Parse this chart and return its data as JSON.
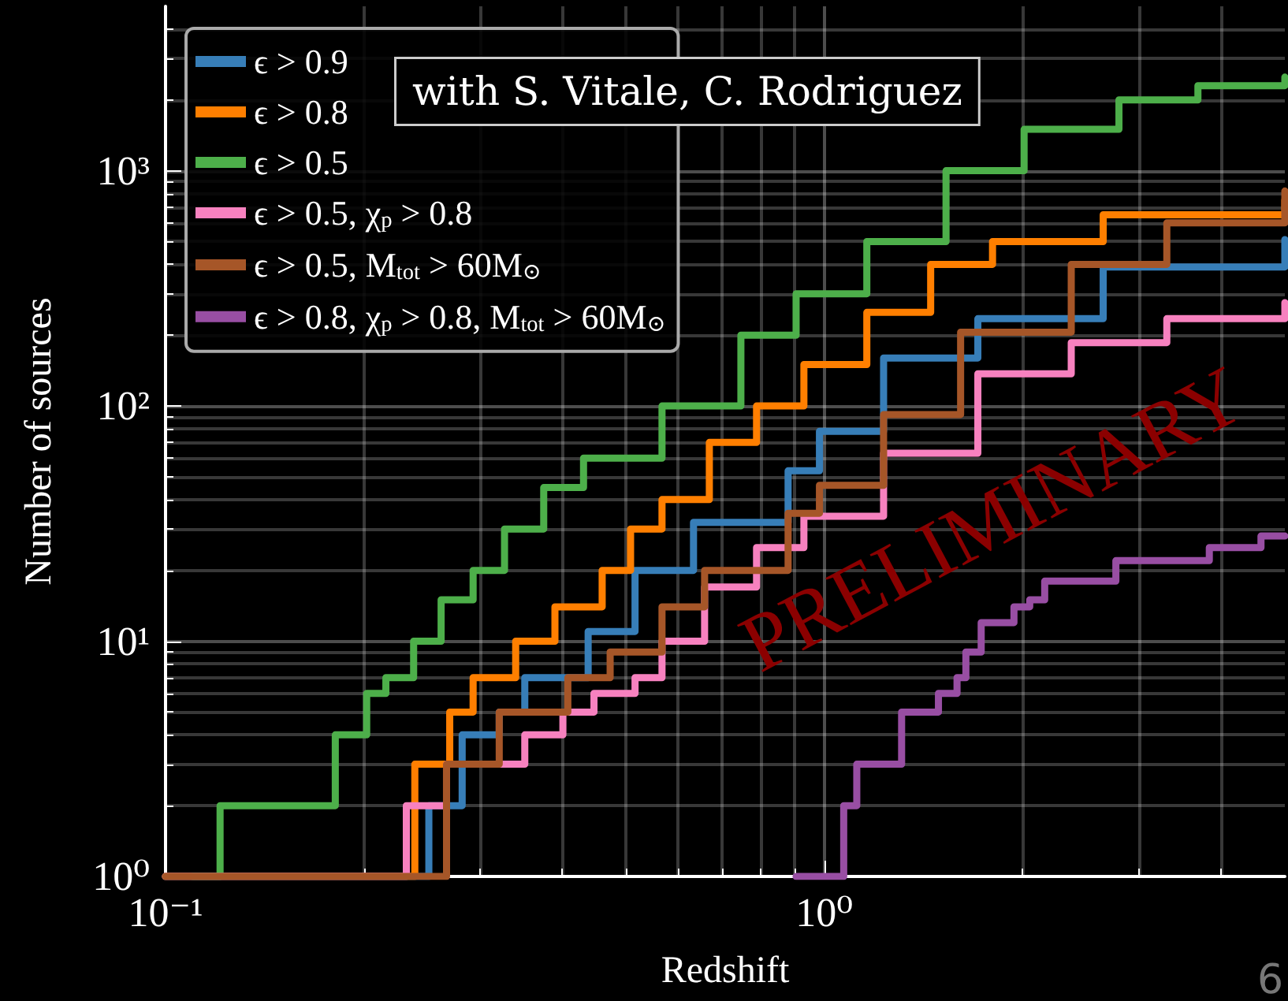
{
  "chart_data": {
    "type": "step",
    "xlabel": "Redshift",
    "ylabel": "Number of sources",
    "annotations": [
      "with S. Vitale, C. Rodriguez",
      "PRELIMINARY",
      "6"
    ],
    "log": "xy",
    "grid": true,
    "legend": "top left",
    "line_style": "solid",
    "marker": "none",
    "xlim": [
      0.1,
      5
    ],
    "xticks": [
      {
        "value": 0.1,
        "label": "10⁻¹"
      },
      {
        "value": 1,
        "label": "10⁰"
      }
    ],
    "ylim": [
      1,
      5000
    ],
    "yticks": [
      {
        "value": 1,
        "label": "10⁰"
      },
      {
        "value": 10,
        "label": "10¹"
      },
      {
        "value": 100,
        "label": "10²"
      },
      {
        "value": 1000,
        "label": "10³"
      }
    ],
    "series": [
      {
        "name": "ϵ > 0.9",
        "color": "#377eb8",
        "x": [
          0.1,
          0.251,
          0.282,
          0.321,
          0.351,
          0.438,
          0.516,
          0.633,
          0.881,
          0.983,
          1.23,
          1.71,
          2.65,
          5.0
        ],
        "values": [
          1,
          2,
          4,
          5,
          7,
          11,
          20,
          32,
          53,
          78,
          160,
          235,
          390,
          510
        ]
      },
      {
        "name": "ϵ > 0.8",
        "color": "#ff7f00",
        "x": [
          0.1,
          0.239,
          0.27,
          0.293,
          0.34,
          0.39,
          0.46,
          0.508,
          0.567,
          0.669,
          0.789,
          0.931,
          1.16,
          1.45,
          1.8,
          2.65,
          5.0
        ],
        "values": [
          1,
          3,
          5,
          7,
          10,
          14,
          20,
          30,
          40,
          70,
          100,
          150,
          250,
          400,
          500,
          650,
          750
        ]
      },
      {
        "name": "ϵ > 0.5",
        "color": "#4daf4a",
        "x": [
          0.11,
          0.121,
          0.171,
          0.181,
          0.202,
          0.216,
          0.238,
          0.262,
          0.293,
          0.327,
          0.375,
          0.431,
          0.567,
          0.747,
          0.906,
          1.16,
          1.53,
          2.01,
          2.8,
          3.69,
          5.0
        ],
        "values": [
          1,
          2,
          2,
          4,
          6,
          7,
          10,
          15,
          20,
          30,
          45,
          60,
          100,
          200,
          300,
          500,
          1000,
          1500,
          2000,
          2300,
          2500
        ]
      },
      {
        "name": "ϵ > 0.5, χ$_{p}$ > 0.8",
        "color": "#f781bf",
        "x": [
          0.1,
          0.232,
          0.267,
          0.351,
          0.401,
          0.447,
          0.516,
          0.567,
          0.658,
          0.789,
          0.931,
          1.23,
          1.71,
          2.37,
          3.31,
          5.0
        ],
        "values": [
          1,
          2,
          3,
          4,
          5,
          6,
          7,
          10,
          17,
          25,
          34,
          63,
          137,
          186,
          235,
          275
        ]
      },
      {
        "name": "ϵ > 0.5, M$_{tot}$ > 60M$_{⊙}$",
        "color": "#a65628",
        "x": [
          0.1,
          0.267,
          0.321,
          0.408,
          0.473,
          0.567,
          0.658,
          0.881,
          0.983,
          1.23,
          1.61,
          2.37,
          3.31,
          5.0
        ],
        "values": [
          1,
          3,
          5,
          7,
          9,
          14,
          20,
          35,
          46,
          92,
          206,
          400,
          600,
          820
        ]
      },
      {
        "name": "ϵ > 0.8, χ$_{p}$ > 0.8, M$_{tot}$ > 60M$_{⊙}$",
        "color": "#984ea3",
        "x": [
          0.906,
          1.07,
          1.12,
          1.31,
          1.49,
          1.59,
          1.64,
          1.73,
          1.94,
          2.05,
          2.16,
          2.77,
          3.84,
          4.6,
          5.0
        ],
        "values": [
          1,
          2,
          3,
          5,
          6,
          7,
          9,
          12,
          14,
          15,
          18,
          22,
          25,
          28,
          28
        ]
      }
    ]
  }
}
